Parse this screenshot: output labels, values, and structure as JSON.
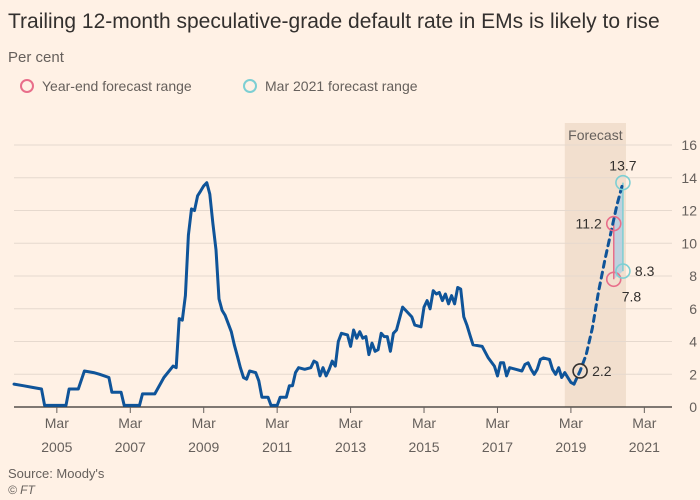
{
  "chart_data": {
    "type": "line",
    "title": "Trailing 12-month speculative-grade default rate in EMs is likely to rise",
    "subtitle": "Per cent",
    "ylim": [
      0,
      16
    ],
    "y_ticks": [
      0,
      2,
      4,
      6,
      8,
      10,
      12,
      14,
      16
    ],
    "x_ticks": [
      {
        "month": "Mar",
        "year": "2005",
        "date": "2005-03"
      },
      {
        "month": "Mar",
        "year": "2007",
        "date": "2007-03"
      },
      {
        "month": "Mar",
        "year": "2009",
        "date": "2009-03"
      },
      {
        "month": "Mar",
        "year": "2011",
        "date": "2011-03"
      },
      {
        "month": "Mar",
        "year": "2013",
        "date": "2013-03"
      },
      {
        "month": "Mar",
        "year": "2015",
        "date": "2015-03"
      },
      {
        "month": "Mar",
        "year": "2017",
        "date": "2017-03"
      },
      {
        "month": "Mar",
        "year": "2019",
        "date": "2019-03"
      },
      {
        "month": "Mar",
        "year": "2021",
        "date": "2021-03"
      }
    ],
    "forecast_label": "Forecast",
    "forecast_start": "2019-01",
    "forecast_end": "2020-09",
    "legend": [
      {
        "label": "Year-end forecast range",
        "color": "#e86e8a"
      },
      {
        "label": "Mar 2021 forecast range",
        "color": "#7dcfd3"
      }
    ],
    "series": [
      {
        "color": "#0f5499",
        "style": "solid",
        "points": [
          [
            "2004-01",
            1.4
          ],
          [
            "2004-04",
            1.3
          ],
          [
            "2004-07",
            1.2
          ],
          [
            "2004-10",
            1.1
          ],
          [
            "2004-11",
            0.1
          ],
          [
            "2005-03",
            0.1
          ],
          [
            "2005-06",
            0.1
          ],
          [
            "2005-07",
            1.1
          ],
          [
            "2005-10",
            1.1
          ],
          [
            "2005-12",
            2.2
          ],
          [
            "2006-03",
            2.1
          ],
          [
            "2006-05",
            2.0
          ],
          [
            "2006-08",
            1.8
          ],
          [
            "2006-09",
            0.9
          ],
          [
            "2006-12",
            0.9
          ],
          [
            "2007-01",
            0.1
          ],
          [
            "2007-06",
            0.1
          ],
          [
            "2007-07",
            0.8
          ],
          [
            "2007-11",
            0.8
          ],
          [
            "2008-02",
            1.8
          ],
          [
            "2008-05",
            2.5
          ],
          [
            "2008-06",
            2.4
          ],
          [
            "2008-07",
            5.4
          ],
          [
            "2008-08",
            5.3
          ],
          [
            "2008-09",
            6.8
          ],
          [
            "2008-10",
            10.5
          ],
          [
            "2008-11",
            12.1
          ],
          [
            "2008-12",
            12.0
          ],
          [
            "2009-01",
            12.9
          ],
          [
            "2009-02",
            13.2
          ],
          [
            "2009-03",
            13.5
          ],
          [
            "2009-04",
            13.7
          ],
          [
            "2009-05",
            13.0
          ],
          [
            "2009-06",
            11.2
          ],
          [
            "2009-07",
            9.6
          ],
          [
            "2009-08",
            6.6
          ],
          [
            "2009-09",
            5.9
          ],
          [
            "2009-10",
            5.6
          ],
          [
            "2009-12",
            4.6
          ],
          [
            "2010-01",
            3.8
          ],
          [
            "2010-02",
            3.1
          ],
          [
            "2010-03",
            2.4
          ],
          [
            "2010-04",
            1.8
          ],
          [
            "2010-05",
            1.7
          ],
          [
            "2010-06",
            2.2
          ],
          [
            "2010-08",
            2.1
          ],
          [
            "2010-09",
            1.6
          ],
          [
            "2010-10",
            0.6
          ],
          [
            "2010-12",
            0.6
          ],
          [
            "2011-01",
            0.1
          ],
          [
            "2011-03",
            0.1
          ],
          [
            "2011-04",
            0.6
          ],
          [
            "2011-06",
            0.6
          ],
          [
            "2011-07",
            1.3
          ],
          [
            "2011-08",
            1.3
          ],
          [
            "2011-09",
            2.1
          ],
          [
            "2011-10",
            2.4
          ],
          [
            "2011-12",
            2.3
          ],
          [
            "2012-02",
            2.4
          ],
          [
            "2012-03",
            2.8
          ],
          [
            "2012-04",
            2.7
          ],
          [
            "2012-05",
            1.9
          ],
          [
            "2012-06",
            2.4
          ],
          [
            "2012-07",
            1.9
          ],
          [
            "2012-08",
            2.3
          ],
          [
            "2012-09",
            2.8
          ],
          [
            "2012-10",
            2.5
          ],
          [
            "2012-11",
            4.0
          ],
          [
            "2012-12",
            4.5
          ],
          [
            "2013-02",
            4.4
          ],
          [
            "2013-03",
            3.7
          ],
          [
            "2013-04",
            4.7
          ],
          [
            "2013-05",
            4.2
          ],
          [
            "2013-06",
            4.6
          ],
          [
            "2013-07",
            4.2
          ],
          [
            "2013-08",
            4.3
          ],
          [
            "2013-09",
            3.2
          ],
          [
            "2013-10",
            3.9
          ],
          [
            "2013-11",
            3.4
          ],
          [
            "2013-12",
            3.5
          ],
          [
            "2014-01",
            4.5
          ],
          [
            "2014-02",
            4.3
          ],
          [
            "2014-03",
            4.3
          ],
          [
            "2014-04",
            3.4
          ],
          [
            "2014-05",
            4.5
          ],
          [
            "2014-06",
            4.7
          ],
          [
            "2014-08",
            6.1
          ],
          [
            "2014-09",
            5.9
          ],
          [
            "2014-11",
            5.5
          ],
          [
            "2014-12",
            5.0
          ],
          [
            "2015-02",
            4.9
          ],
          [
            "2015-03",
            6.1
          ],
          [
            "2015-04",
            6.5
          ],
          [
            "2015-05",
            6.0
          ],
          [
            "2015-06",
            7.1
          ],
          [
            "2015-07",
            6.9
          ],
          [
            "2015-08",
            7.0
          ],
          [
            "2015-09",
            6.5
          ],
          [
            "2015-10",
            6.9
          ],
          [
            "2015-11",
            6.3
          ],
          [
            "2015-12",
            6.8
          ],
          [
            "2016-01",
            6.3
          ],
          [
            "2016-02",
            7.3
          ],
          [
            "2016-03",
            7.2
          ],
          [
            "2016-04",
            5.5
          ],
          [
            "2016-05",
            5.0
          ],
          [
            "2016-06",
            4.4
          ],
          [
            "2016-07",
            3.8
          ],
          [
            "2016-10",
            3.7
          ],
          [
            "2016-12",
            3.0
          ],
          [
            "2017-02",
            2.5
          ],
          [
            "2017-03",
            1.9
          ],
          [
            "2017-04",
            2.7
          ],
          [
            "2017-05",
            2.7
          ],
          [
            "2017-06",
            1.9
          ],
          [
            "2017-07",
            2.4
          ],
          [
            "2017-09",
            2.3
          ],
          [
            "2017-11",
            2.2
          ],
          [
            "2017-12",
            2.6
          ],
          [
            "2018-01",
            2.7
          ],
          [
            "2018-02",
            2.3
          ],
          [
            "2018-03",
            2.0
          ],
          [
            "2018-04",
            2.3
          ],
          [
            "2018-05",
            2.9
          ],
          [
            "2018-06",
            3.0
          ],
          [
            "2018-08",
            2.9
          ],
          [
            "2018-09",
            2.3
          ],
          [
            "2018-10",
            2.0
          ],
          [
            "2018-11",
            2.4
          ],
          [
            "2018-12",
            1.8
          ],
          [
            "2019-01",
            2.1
          ],
          [
            "2019-02",
            1.8
          ],
          [
            "2019-03",
            1.5
          ],
          [
            "2019-04",
            1.4
          ]
        ]
      },
      {
        "color": "#0f5499",
        "style": "dashed",
        "points": [
          [
            "2019-04",
            1.4
          ],
          [
            "2019-06",
            2.2
          ],
          [
            "2019-08",
            3.2
          ],
          [
            "2019-10",
            4.8
          ],
          [
            "2019-12",
            7.0
          ],
          [
            "2020-02",
            8.9
          ],
          [
            "2020-04",
            10.6
          ],
          [
            "2020-06",
            12.3
          ],
          [
            "2020-08",
            13.7
          ]
        ]
      }
    ],
    "markers": [
      {
        "date": "2019-06",
        "value": 2.2,
        "label": "2.2",
        "color": "#33302e",
        "label_side": "right"
      },
      {
        "date": "2020-05",
        "value": 11.2,
        "label": "11.2",
        "color": "#e86e8a",
        "label_side": "left"
      },
      {
        "date": "2020-05",
        "value": 7.8,
        "label": "7.8",
        "color": "#e86e8a",
        "label_side": "below-right"
      },
      {
        "date": "2020-08",
        "value": 13.7,
        "label": "13.7",
        "color": "#7dcfd3",
        "label_side": "above"
      },
      {
        "date": "2020-08",
        "value": 8.3,
        "label": "8.3",
        "color": "#7dcfd3",
        "label_side": "right"
      }
    ],
    "ranges": [
      {
        "date": "2020-05",
        "from": 7.8,
        "to": 11.2,
        "color": "#e86e8a"
      },
      {
        "date": "2020-08",
        "from": 8.3,
        "to": 13.7,
        "color": "#7dcfd3"
      }
    ]
  },
  "source": "Source: Moody's",
  "copyright": "© FT"
}
